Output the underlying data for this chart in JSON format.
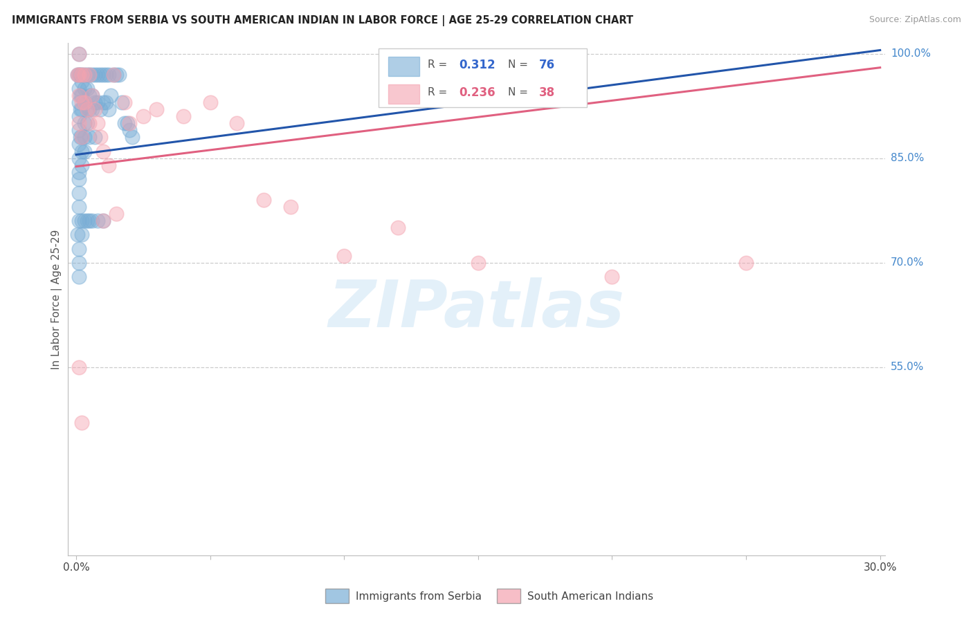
{
  "title": "IMMIGRANTS FROM SERBIA VS SOUTH AMERICAN INDIAN IN LABOR FORCE | AGE 25-29 CORRELATION CHART",
  "source": "Source: ZipAtlas.com",
  "ylabel": "In Labor Force | Age 25-29",
  "xlim": [
    -0.003,
    0.302
  ],
  "ylim": [
    0.28,
    1.015
  ],
  "ytick_vals": [
    0.55,
    0.7,
    0.85,
    1.0
  ],
  "ytick_labels": [
    "55.0%",
    "70.0%",
    "85.0%",
    "100.0%"
  ],
  "xtick_vals": [
    0.0,
    0.05,
    0.1,
    0.15,
    0.2,
    0.25,
    0.3
  ],
  "serbia_color": "#7aaed6",
  "sam_color": "#f4a3b0",
  "serbia_line_color": "#2255aa",
  "sam_line_color": "#e06080",
  "serbia_trendline": [
    0.0,
    0.855,
    0.3,
    1.005
  ],
  "sam_trendline": [
    0.0,
    0.838,
    0.3,
    0.98
  ],
  "watermark_text": "ZIPatlas",
  "serbia_scatter_x": [
    0.0005,
    0.001,
    0.001,
    0.001,
    0.001,
    0.001,
    0.001,
    0.001,
    0.001,
    0.001,
    0.001,
    0.001,
    0.001,
    0.001,
    0.0015,
    0.0015,
    0.0015,
    0.0015,
    0.002,
    0.002,
    0.002,
    0.002,
    0.002,
    0.002,
    0.002,
    0.003,
    0.003,
    0.003,
    0.003,
    0.003,
    0.003,
    0.004,
    0.004,
    0.004,
    0.004,
    0.005,
    0.005,
    0.005,
    0.005,
    0.006,
    0.006,
    0.006,
    0.007,
    0.007,
    0.007,
    0.008,
    0.008,
    0.009,
    0.009,
    0.01,
    0.01,
    0.011,
    0.011,
    0.012,
    0.012,
    0.013,
    0.014,
    0.015,
    0.016,
    0.017,
    0.018,
    0.019,
    0.02,
    0.021,
    0.0005,
    0.001,
    0.001,
    0.001,
    0.002,
    0.002,
    0.003,
    0.004,
    0.005,
    0.006,
    0.008,
    0.01
  ],
  "serbia_scatter_y": [
    0.97,
    1.0,
    0.97,
    0.95,
    0.93,
    0.91,
    0.89,
    0.87,
    0.85,
    0.83,
    0.82,
    0.8,
    0.78,
    0.76,
    0.97,
    0.94,
    0.92,
    0.88,
    0.97,
    0.96,
    0.94,
    0.92,
    0.88,
    0.86,
    0.84,
    0.97,
    0.95,
    0.93,
    0.9,
    0.88,
    0.86,
    0.97,
    0.95,
    0.92,
    0.9,
    0.97,
    0.94,
    0.92,
    0.88,
    0.97,
    0.94,
    0.92,
    0.97,
    0.93,
    0.88,
    0.97,
    0.93,
    0.97,
    0.92,
    0.97,
    0.93,
    0.97,
    0.93,
    0.97,
    0.92,
    0.94,
    0.97,
    0.97,
    0.97,
    0.93,
    0.9,
    0.9,
    0.89,
    0.88,
    0.74,
    0.72,
    0.7,
    0.68,
    0.76,
    0.74,
    0.76,
    0.76,
    0.76,
    0.76,
    0.76,
    0.76
  ],
  "sam_scatter_x": [
    0.0005,
    0.001,
    0.001,
    0.001,
    0.001,
    0.002,
    0.002,
    0.002,
    0.003,
    0.003,
    0.004,
    0.005,
    0.005,
    0.006,
    0.007,
    0.008,
    0.009,
    0.01,
    0.012,
    0.014,
    0.018,
    0.02,
    0.025,
    0.03,
    0.04,
    0.05,
    0.06,
    0.07,
    0.08,
    0.1,
    0.12,
    0.15,
    0.2,
    0.25,
    0.001,
    0.002,
    0.01,
    0.015
  ],
  "sam_scatter_y": [
    0.97,
    1.0,
    0.97,
    0.94,
    0.9,
    0.97,
    0.93,
    0.88,
    0.97,
    0.93,
    0.92,
    0.97,
    0.9,
    0.94,
    0.92,
    0.9,
    0.88,
    0.86,
    0.84,
    0.97,
    0.93,
    0.9,
    0.91,
    0.92,
    0.91,
    0.93,
    0.9,
    0.79,
    0.78,
    0.71,
    0.75,
    0.7,
    0.68,
    0.7,
    0.55,
    0.47,
    0.76,
    0.77
  ]
}
